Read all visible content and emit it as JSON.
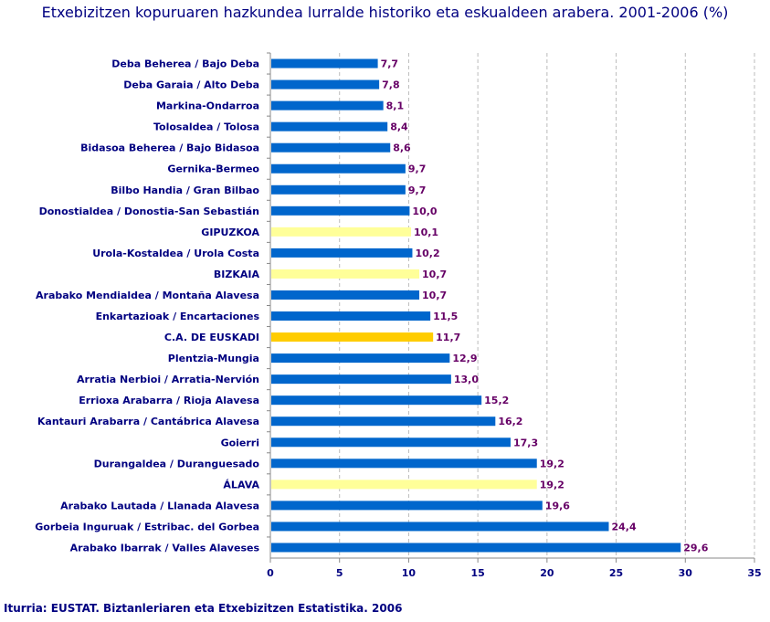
{
  "chart_data": {
    "type": "bar",
    "orientation": "horizontal",
    "title": "Etxebizitzen kopuruaren hazkundea lurralde historiko eta eskualdeen arabera. 2001-2006 (%)",
    "categories": [
      "Deba Beherea  /  Bajo Deba",
      "Deba Garaia  /  Alto Deba",
      "Markina-Ondarroa",
      "Tolosaldea  /  Tolosa",
      "Bidasoa Beherea  /  Bajo Bidasoa",
      "Gernika-Bermeo",
      "Bilbo Handia  /  Gran Bilbao",
      "Donostialdea  /  Donostia-San Sebastián",
      "GIPUZKOA",
      "Urola-Kostaldea  /  Urola Costa",
      "BIZKAIA",
      "Arabako Mendialdea  /  Montaña Alavesa",
      "Enkartazioak  /  Encartaciones",
      "C.A. DE EUSKADI",
      "Plentzia-Mungia",
      "Arratia Nerbioi  /  Arratia-Nervión",
      "Errioxa Arabarra  /  Rioja Alavesa",
      "Kantauri Arabarra  /  Cantábrica Alavesa",
      "Goierri",
      "Durangaldea  /  Duranguesado",
      "ÁLAVA",
      "Arabako Lautada  /  Llanada Alavesa",
      "Gorbeia Inguruak  /  Estribac. del Gorbea",
      "Arabako Ibarrak  /  Valles Alaveses"
    ],
    "values": [
      7.7,
      7.8,
      8.1,
      8.4,
      8.6,
      9.7,
      9.7,
      10.0,
      10.1,
      10.2,
      10.7,
      10.7,
      11.5,
      11.7,
      12.9,
      13.0,
      15.2,
      16.2,
      17.3,
      19.2,
      19.2,
      19.6,
      24.4,
      29.6
    ],
    "value_labels": [
      "7,7",
      "7,8",
      "8,1",
      "8,4",
      "8,6",
      "9,7",
      "9,7",
      "10,0",
      "10,1",
      "10,2",
      "10,7",
      "10,7",
      "11,5",
      "11,7",
      "12,9",
      "13,0",
      "15,2",
      "16,2",
      "17,3",
      "19,2",
      "19,2",
      "19,6",
      "24,4",
      "29,6"
    ],
    "bar_kinds": [
      "region",
      "region",
      "region",
      "region",
      "region",
      "region",
      "region",
      "region",
      "province",
      "region",
      "province",
      "region",
      "region",
      "total",
      "region",
      "region",
      "region",
      "region",
      "region",
      "region",
      "province",
      "region",
      "region",
      "region"
    ],
    "colors": {
      "region": "#0066CC",
      "province": "#FFFF99",
      "total": "#FFCC00"
    },
    "xlim": [
      0,
      35
    ],
    "xticks": [
      "0",
      "5",
      "10",
      "15",
      "20",
      "25",
      "30",
      "35"
    ],
    "grid": true
  },
  "source": "Iturria: EUSTAT. Biztanleriaren eta Etxebizitzen Estatistika. 2006"
}
